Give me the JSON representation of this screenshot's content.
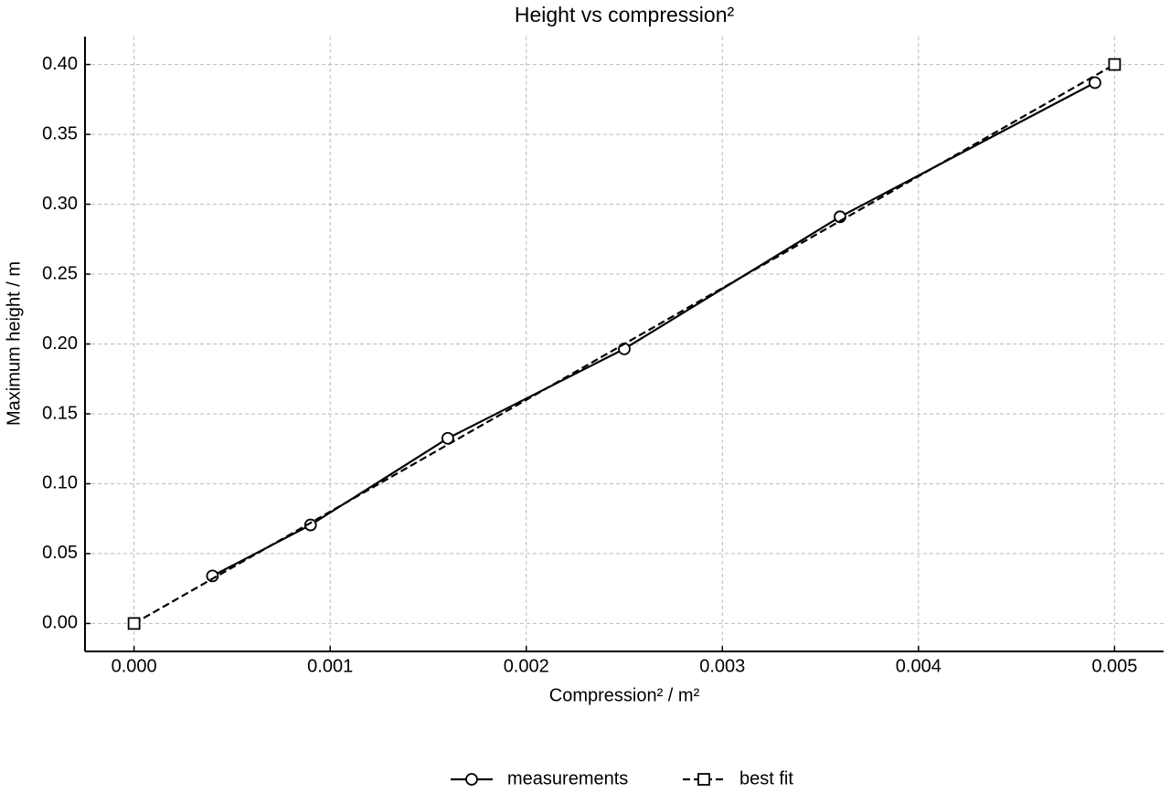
{
  "chart_data": {
    "type": "line",
    "title": "Height vs compression²",
    "x_label": "Compression² / m²",
    "y_label": "Maximum height / m",
    "series": [
      {
        "name": "measurements",
        "color": "#000000",
        "marker": "circle",
        "linestyle": "solid",
        "x": [
          0.0004,
          0.0009,
          0.0016,
          0.0025,
          0.0036,
          0.0049
        ],
        "values": [
          0.034,
          0.0705,
          0.1325,
          0.1965,
          0.291,
          0.387
        ]
      },
      {
        "name": "best fit",
        "color": "#000000",
        "marker": "square",
        "linestyle": "dashed",
        "x": [
          0,
          0.005
        ],
        "values": [
          0,
          0.4
        ]
      }
    ],
    "xlim": [
      -0.00025,
      0.00525
    ],
    "ylim": [
      -0.02,
      0.42
    ],
    "xticks": [
      {
        "value": 0,
        "label": "0.000"
      },
      {
        "value": 0.001,
        "label": "0.001"
      },
      {
        "value": 0.002,
        "label": "0.002"
      },
      {
        "value": 0.003,
        "label": "0.003"
      },
      {
        "value": 0.004,
        "label": "0.004"
      },
      {
        "value": 0.005,
        "label": "0.005"
      }
    ],
    "yticks": [
      {
        "value": 0,
        "label": "0.00"
      },
      {
        "value": 0.05,
        "label": "0.05"
      },
      {
        "value": 0.1,
        "label": "0.10"
      },
      {
        "value": 0.15,
        "label": "0.15"
      },
      {
        "value": 0.2,
        "label": "0.20"
      },
      {
        "value": 0.25,
        "label": "0.25"
      },
      {
        "value": 0.3,
        "label": "0.30"
      },
      {
        "value": 0.35,
        "label": "0.35"
      },
      {
        "value": 0.4,
        "label": "0.40"
      }
    ],
    "grid": true,
    "legend": "bottom"
  }
}
